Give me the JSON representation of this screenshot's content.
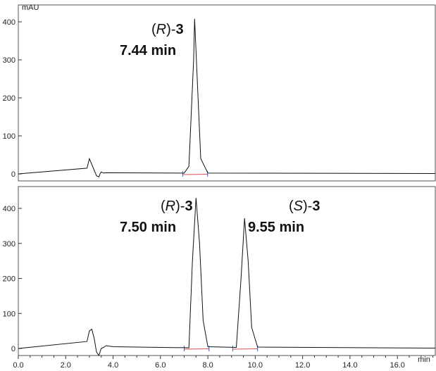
{
  "chart_data": [
    {
      "type": "line",
      "panel": "top",
      "ylabel": "mAU",
      "ylim": [
        0,
        420
      ],
      "yticks": [
        0,
        100,
        200,
        300,
        400
      ],
      "xlim": [
        0,
        17.6
      ],
      "grid": false,
      "peaks": [
        {
          "label_prefix": "(",
          "label_italic": "R",
          "label_mid": ")-",
          "label_bold": "3",
          "time_label": "7.44 min",
          "retention_time": 7.44,
          "height": 408
        }
      ],
      "series": [
        {
          "x": [
            0,
            2.9,
            3.0,
            3.1,
            3.3,
            3.4,
            3.45,
            3.5,
            3.6,
            3.7,
            7.0,
            7.2,
            7.4,
            7.44,
            7.55,
            7.7,
            8.0,
            17.6
          ],
          "y": [
            0,
            15,
            40,
            25,
            -5,
            -8,
            0,
            5,
            2,
            3,
            2,
            20,
            300,
            408,
            250,
            40,
            2,
            1
          ]
        }
      ]
    },
    {
      "type": "line",
      "panel": "bottom",
      "ylabel": "",
      "xlabel": "min",
      "ylim": [
        0,
        440
      ],
      "yticks": [
        0,
        100,
        200,
        300,
        400
      ],
      "xlim": [
        0,
        17.6
      ],
      "xticks": [
        "0.0",
        "2.0",
        "4.0",
        "6.0",
        "8.0",
        "10.0",
        "12.0",
        "14.0",
        "16.0"
      ],
      "grid": false,
      "peaks": [
        {
          "label_prefix": "(",
          "label_italic": "R",
          "label_mid": ")-",
          "label_bold": "3",
          "time_label": "7.50 min",
          "retention_time": 7.5,
          "height": 430
        },
        {
          "label_prefix": "(",
          "label_italic": "S",
          "label_mid": ")-",
          "label_bold": "3",
          "time_label": "9.55 min",
          "retention_time": 9.55,
          "height": 372
        }
      ],
      "series": [
        {
          "x": [
            0,
            2.9,
            3.0,
            3.1,
            3.2,
            3.3,
            3.4,
            3.5,
            3.6,
            3.7,
            4.0,
            7.2,
            7.35,
            7.5,
            7.65,
            7.8,
            8.0,
            9.2,
            9.4,
            9.55,
            9.7,
            9.85,
            10.1,
            17.6
          ],
          "y": [
            0,
            20,
            50,
            55,
            30,
            -10,
            -20,
            0,
            3,
            8,
            5,
            2,
            250,
            430,
            300,
            80,
            5,
            3,
            200,
            372,
            250,
            60,
            4,
            1
          ]
        }
      ]
    }
  ]
}
